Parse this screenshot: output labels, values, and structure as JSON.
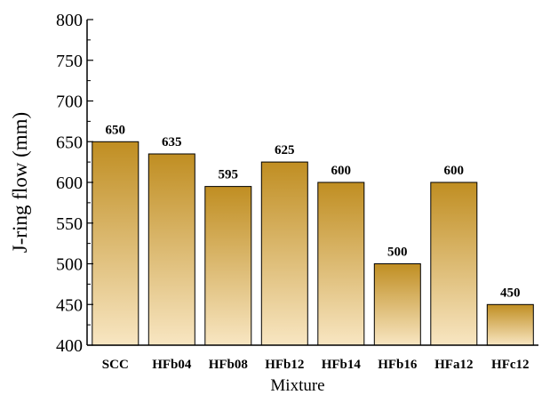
{
  "chart_data": {
    "type": "bar",
    "categories": [
      "SCC",
      "HFb04",
      "HFb08",
      "HFb12",
      "HFb14",
      "HFb16",
      "HFa12",
      "HFc12"
    ],
    "values": [
      650,
      635,
      595,
      625,
      600,
      500,
      600,
      450
    ],
    "data_labels": [
      "650",
      "635",
      "595",
      "625",
      "600",
      "500",
      "600",
      "450"
    ],
    "xlabel": "Mixture",
    "ylabel": "J-ring flow (mm)",
    "ylim": [
      400,
      800
    ],
    "yticks": [
      400,
      450,
      500,
      550,
      600,
      650,
      700,
      750,
      800
    ],
    "ytick_labels": [
      "400",
      "450",
      "500",
      "550",
      "600",
      "650",
      "700",
      "750",
      "800"
    ],
    "grid": false,
    "colors": {
      "bar_top": "#c08e22",
      "bar_bottom": "#f8e6c2",
      "bar_edge": "#000000"
    }
  }
}
